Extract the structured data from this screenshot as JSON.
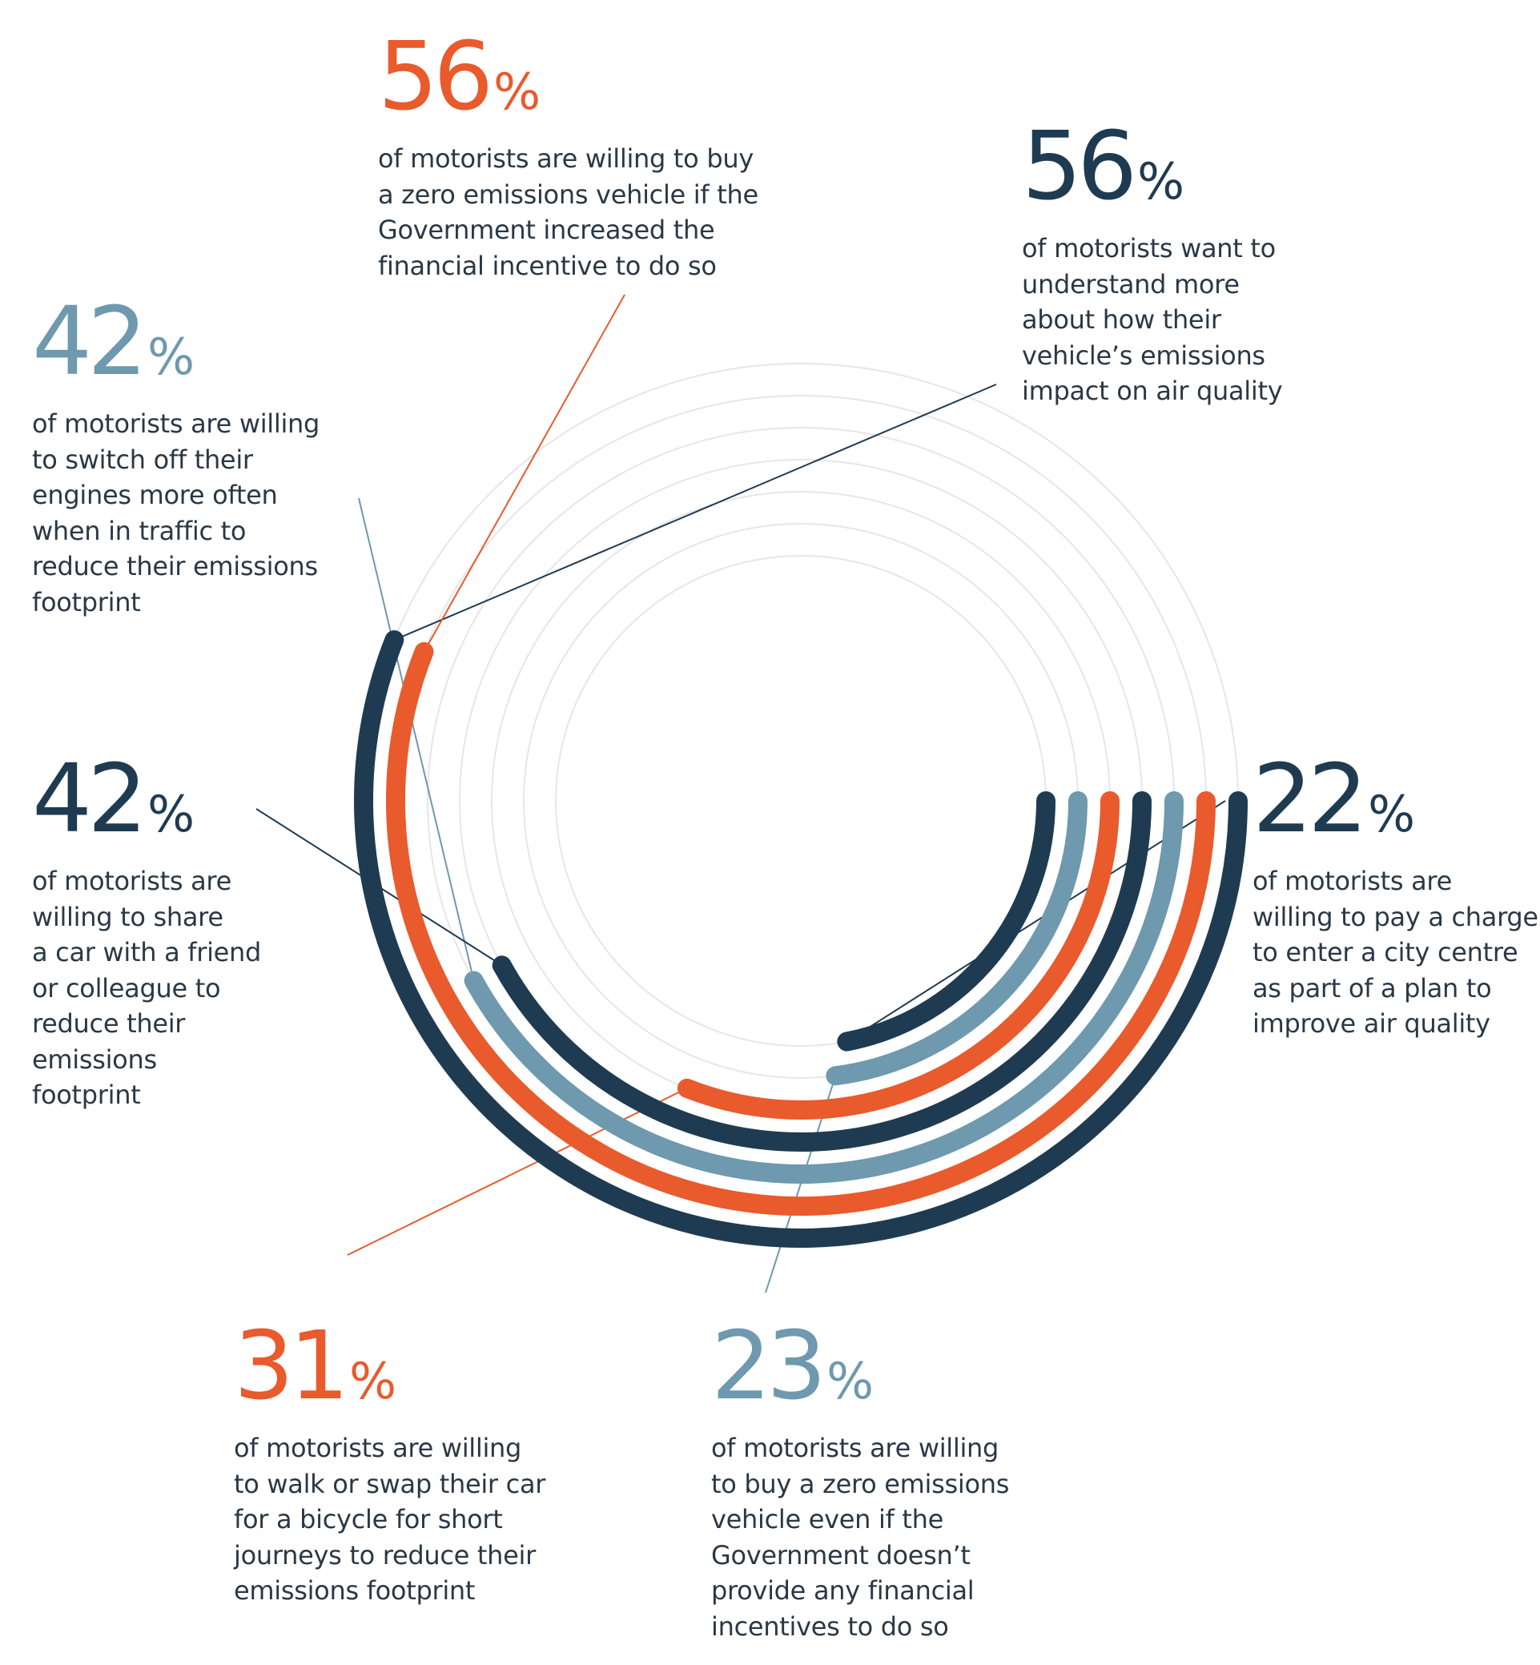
{
  "chart_data": {
    "type": "radial-bar",
    "grid": true,
    "colors": {
      "navy": "#1f3b52",
      "orange": "#e95a2c",
      "blue": "#6e99ae",
      "grid": "#e6e6e6"
    },
    "series": [
      {
        "value": 56,
        "color": "#1f3b52",
        "text": "of motorists want to\nunderstand more\nabout how their\nvehicle’s emissions\nimpact on air quality"
      },
      {
        "value": 56,
        "color": "#e95a2c",
        "text": "of motorists are willing to buy\na zero emissions vehicle if the\nGovernment increased the\nfinancial incentive to do so"
      },
      {
        "value": 42,
        "color": "#6e99ae",
        "text": "of motorists are willing\nto switch off their\nengines more often\nwhen in traffic to\nreduce their emissions\nfootprint"
      },
      {
        "value": 42,
        "color": "#1f3b52",
        "text": "of motorists are\nwilling to share\na car with a friend\nor colleague to\nreduce their\nemissions\nfootprint"
      },
      {
        "value": 31,
        "color": "#e95a2c",
        "text": "of motorists are willing\nto walk or swap their car\nfor a bicycle for short\njourneys to reduce their\nemissions footprint"
      },
      {
        "value": 23,
        "color": "#6e99ae",
        "text": "of motorists are willing\nto buy a zero emissions\nvehicle even if the\nGovernment doesn’t\nprovide any financial\nincentives to do so"
      },
      {
        "value": 22,
        "color": "#1f3b52",
        "text": "of motorists are\nwilling to pay a charge\nto enter a city centre\nas part of a plan to\nimprove air quality"
      }
    ],
    "percent_sign": "%"
  }
}
